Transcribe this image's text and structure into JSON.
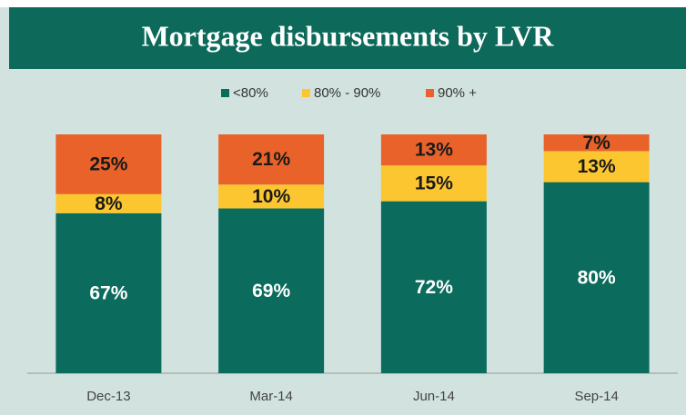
{
  "chart_data": {
    "type": "stacked_bar",
    "title": "Mortgage disbursements by LVR",
    "categories": [
      "Dec-13",
      "Mar-14",
      "Jun-14",
      "Sep-14"
    ],
    "series": [
      {
        "name": "<80%",
        "color": "#0b6b5c",
        "values": [
          67,
          69,
          72,
          80
        ],
        "value_labels": [
          "67%",
          "69%",
          "72%",
          "80%"
        ]
      },
      {
        "name": "80% - 90%",
        "color": "#fcc630",
        "values": [
          8,
          10,
          15,
          13
        ],
        "value_labels": [
          "8%",
          "10%",
          "15%",
          "13%"
        ]
      },
      {
        "name": "90% +",
        "color": "#e8622a",
        "values": [
          25,
          21,
          13,
          7
        ],
        "value_labels": [
          "25%",
          "21%",
          "13%",
          "7%"
        ]
      }
    ],
    "ylim": [
      0,
      100
    ],
    "legend": "top"
  }
}
